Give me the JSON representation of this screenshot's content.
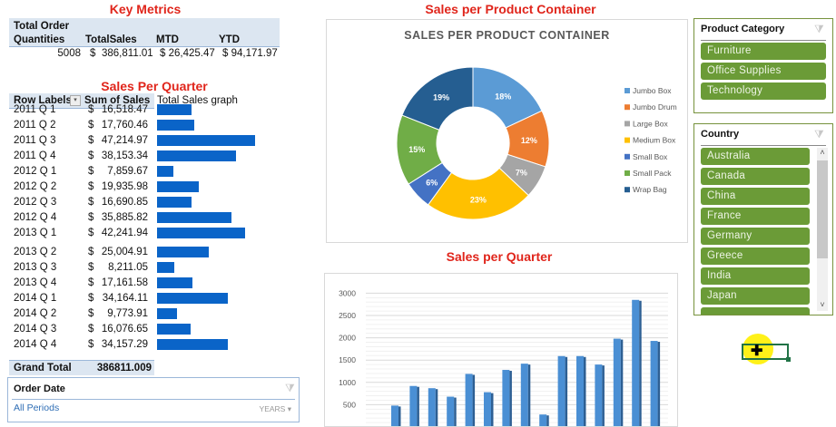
{
  "key_metrics": {
    "title": "Key Metrics",
    "headers": [
      "Total Order",
      "Quantities",
      "TotalSales",
      "MTD",
      "YTD"
    ],
    "values": {
      "quantities": "5008",
      "total_sales_symbol": "$",
      "total_sales": "386,811.01",
      "mtd": "$ 26,425.47",
      "ytd": "$ 94,171.97"
    }
  },
  "pivot": {
    "title": "Sales Per Quarter",
    "col_row_labels": "Row Labels",
    "col_sum": "Sum of Sales",
    "col_graph": "Total Sales graph",
    "currency": "$",
    "rows": [
      {
        "label": "2011 Q 1",
        "value": "16,518.47",
        "amount": 16518.47
      },
      {
        "label": "2011 Q 2",
        "value": "17,760.46",
        "amount": 17760.46
      },
      {
        "label": "2011 Q 3",
        "value": "47,214.97",
        "amount": 47214.97
      },
      {
        "label": "2011 Q 4",
        "value": "38,153.34",
        "amount": 38153.34
      },
      {
        "label": "2012 Q 1",
        "value": "7,859.67",
        "amount": 7859.67
      },
      {
        "label": "2012 Q 2",
        "value": "19,935.98",
        "amount": 19935.98
      },
      {
        "label": "2012 Q 3",
        "value": "16,690.85",
        "amount": 16690.85
      },
      {
        "label": "2012 Q 4",
        "value": "35,885.82",
        "amount": 35885.82
      },
      {
        "label": "2013 Q 1",
        "value": "42,241.94",
        "amount": 42241.94
      },
      {
        "label": "2013 Q 2",
        "value": "25,004.91",
        "amount": 25004.91
      },
      {
        "label": "2013 Q 3",
        "value": "8,211.05",
        "amount": 8211.05
      },
      {
        "label": "2013 Q 4",
        "value": "17,161.58",
        "amount": 17161.58
      },
      {
        "label": "2014 Q 1",
        "value": "34,164.11",
        "amount": 34164.11
      },
      {
        "label": "2014 Q 2",
        "value": "9,773.91",
        "amount": 9773.91
      },
      {
        "label": "2014 Q 3",
        "value": "16,076.65",
        "amount": 16076.65
      },
      {
        "label": "2014 Q 4",
        "value": "34,157.29",
        "amount": 34157.29
      }
    ],
    "grand_total_label": "Grand Total",
    "grand_total_value": "386811.009",
    "bar_color": "#0a64c8"
  },
  "order_date_slicer": {
    "title": "Order Date",
    "selection": "All Periods",
    "level": "YEARS"
  },
  "product_category_slicer": {
    "title": "Product Category",
    "items": [
      "Furniture",
      "Office Supplies",
      "Technology"
    ]
  },
  "country_slicer": {
    "title": "Country",
    "items": [
      "Australia",
      "Canada",
      "China",
      "France",
      "Germany",
      "Greece",
      "India",
      "Japan"
    ]
  },
  "slicer_color": "#6b9b37",
  "chart_data": [
    {
      "type": "pie",
      "variant": "donut",
      "heading": "Sales per Product Container",
      "title": "SALES PER PRODUCT CONTAINER",
      "legend_position": "right",
      "labels": [
        "Jumbo Box",
        "Jumbo Drum",
        "Large Box",
        "Medium Box",
        "Small Box",
        "Small Pack",
        "Wrap Bag"
      ],
      "values": [
        18,
        12,
        7,
        23,
        6,
        15,
        19
      ],
      "value_labels": [
        "18%",
        "12%",
        "7%",
        "23%",
        "6%",
        "15%",
        "19%"
      ],
      "colors": [
        "#5b9bd5",
        "#ed7d31",
        "#a5a5a5",
        "#ffc000",
        "#4472c4",
        "#70ad47",
        "#255e91"
      ]
    },
    {
      "type": "bar",
      "style": "3d-column",
      "heading": "Sales per Quarter",
      "yticks": [
        "3000",
        "2500",
        "2000",
        "1500",
        "1000",
        "500"
      ],
      "ylim": [
        0,
        3000
      ],
      "grid": true,
      "values": [
        480,
        920,
        870,
        680,
        1190,
        780,
        1280,
        1420,
        280,
        1590,
        1590,
        1400,
        1980,
        2850,
        1930
      ],
      "color": "#4a8fd4"
    }
  ]
}
